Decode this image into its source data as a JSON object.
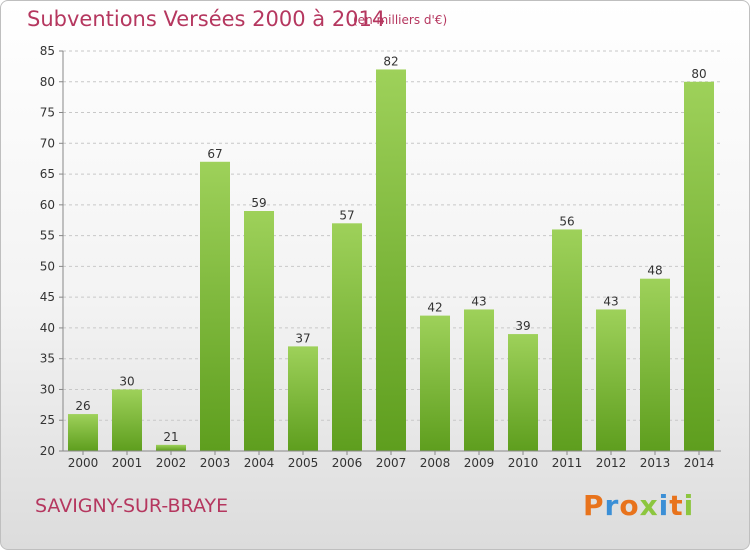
{
  "header": {
    "title": "Subventions Versées 2000 à 2014",
    "subtitle": "(en milliers d'€)"
  },
  "footer": {
    "commune": "SAVIGNY-SUR-BRAYE",
    "logo_text": "Proxiti",
    "logo_colors": [
      "#e8731c",
      "#3b8fd6",
      "#e8731c",
      "#8cc63f",
      "#3b8fd6",
      "#e8731c",
      "#8cc63f"
    ]
  },
  "colors": {
    "title": "#b5375f",
    "bar_top": "#9ed15a",
    "bar_bottom": "#5e9e1e",
    "grid": "#c8c8c8"
  },
  "chart_data": {
    "type": "bar",
    "categories": [
      "2000",
      "2001",
      "2002",
      "2003",
      "2004",
      "2005",
      "2006",
      "2007",
      "2008",
      "2009",
      "2010",
      "2011",
      "2012",
      "2013",
      "2014"
    ],
    "values": [
      26,
      30,
      21,
      67,
      59,
      37,
      57,
      82,
      42,
      43,
      39,
      56,
      43,
      48,
      80
    ],
    "ylim": [
      20,
      85
    ],
    "yticks": [
      20,
      25,
      30,
      35,
      40,
      45,
      50,
      55,
      60,
      65,
      70,
      75,
      80,
      85
    ],
    "grid": "horizontal dashed",
    "legend": "none"
  }
}
